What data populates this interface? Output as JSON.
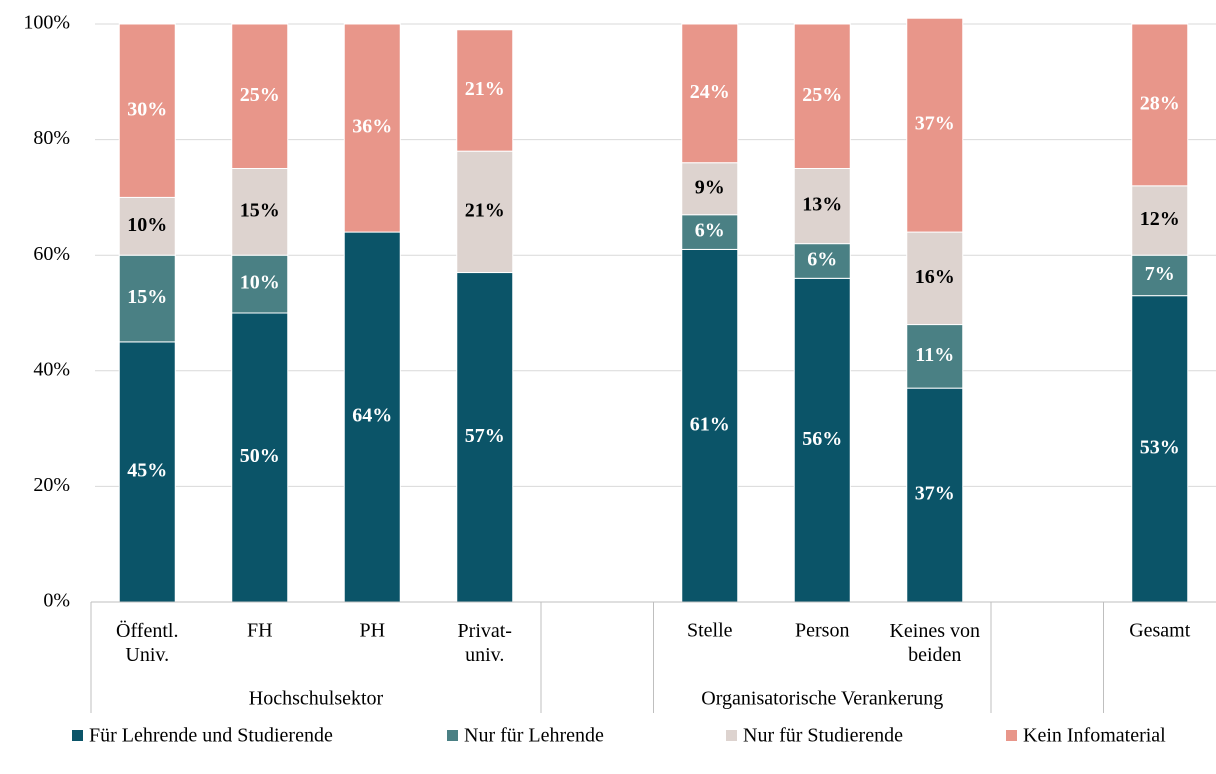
{
  "chart_data": {
    "type": "stacked-bar",
    "categories": [
      "Öffentl.\nUniv.",
      "FH",
      "PH",
      "Privat-\nuniv.",
      null,
      "Stelle",
      "Person",
      "Keines von\nbeiden",
      null,
      "Gesamt"
    ],
    "groups": [
      "Hochschulsektor",
      "Organisatorische Verankerung"
    ],
    "series": [
      {
        "name": "Für Lehrende und Studierende",
        "color": "#0b5468",
        "label_color": "#ffffff",
        "values": [
          45,
          50,
          64,
          57,
          null,
          61,
          56,
          37,
          null,
          53
        ],
        "value_labels": [
          "45%",
          "50%",
          "64%",
          "57%",
          null,
          "61%",
          "56%",
          "37%",
          null,
          "53%"
        ]
      },
      {
        "name": "Nur für Lehrende",
        "color": "#4a8084",
        "label_color": "#ffffff",
        "values": [
          15,
          10,
          0,
          0,
          null,
          6,
          6,
          11,
          null,
          7
        ],
        "value_labels": [
          "15%",
          "10%",
          null,
          null,
          null,
          "6%",
          "6%",
          "11%",
          null,
          "7%"
        ]
      },
      {
        "name": "Nur für Studierende",
        "color": "#ddd3cf",
        "label_color": "#000000",
        "values": [
          10,
          15,
          0,
          21,
          null,
          9,
          13,
          16,
          null,
          12
        ],
        "value_labels": [
          "10%",
          "15%",
          null,
          "21%",
          null,
          "9%",
          "13%",
          "16%",
          null,
          "12%"
        ]
      },
      {
        "name": "Kein Infomaterial",
        "color": "#e8968a",
        "label_color": "#ffffff",
        "values": [
          30,
          25,
          36,
          21,
          null,
          24,
          25,
          37,
          null,
          28
        ],
        "value_labels": [
          "30%",
          "25%",
          "36%",
          "21%",
          null,
          "24%",
          "25%",
          "37%",
          null,
          "28%"
        ]
      }
    ],
    "ylim": [
      0,
      100
    ],
    "yticks": [
      {
        "value": 0,
        "label": "0%"
      },
      {
        "value": 20,
        "label": "20%"
      },
      {
        "value": 40,
        "label": "40%"
      },
      {
        "value": 60,
        "label": "60%"
      },
      {
        "value": 80,
        "label": "80%"
      },
      {
        "value": 100,
        "label": "100%"
      }
    ],
    "grid": true,
    "legend": "bottom"
  }
}
